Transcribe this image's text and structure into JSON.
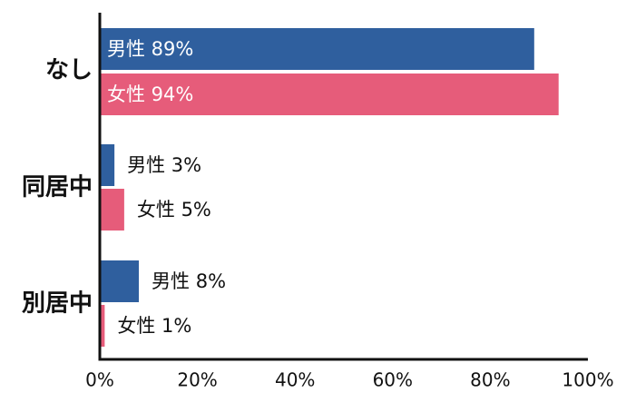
{
  "chart_data": {
    "type": "bar",
    "orientation": "horizontal",
    "categories": [
      "なし",
      "同居中",
      "別居中"
    ],
    "series": [
      {
        "name": "男性",
        "values": [
          89,
          3,
          8
        ],
        "color": "#2f5f9e"
      },
      {
        "name": "女性",
        "values": [
          94,
          5,
          1
        ],
        "color": "#e65c7a"
      }
    ],
    "data_labels": [
      [
        "男性 89%",
        "女性 94%"
      ],
      [
        "男性 3%",
        "女性 5%"
      ],
      [
        "男性 8%",
        "女性 1%"
      ]
    ],
    "xlim": [
      0,
      100
    ],
    "x_ticks": [
      0,
      20,
      40,
      60,
      80,
      100
    ],
    "x_tick_labels": [
      "0%",
      "20%",
      "40%",
      "60%",
      "80%",
      "100%"
    ],
    "title": "",
    "xlabel": "",
    "ylabel": "",
    "grid": false,
    "legend": "none",
    "label_color_inside": "#ffffff",
    "label_color_outside": "#111111"
  }
}
